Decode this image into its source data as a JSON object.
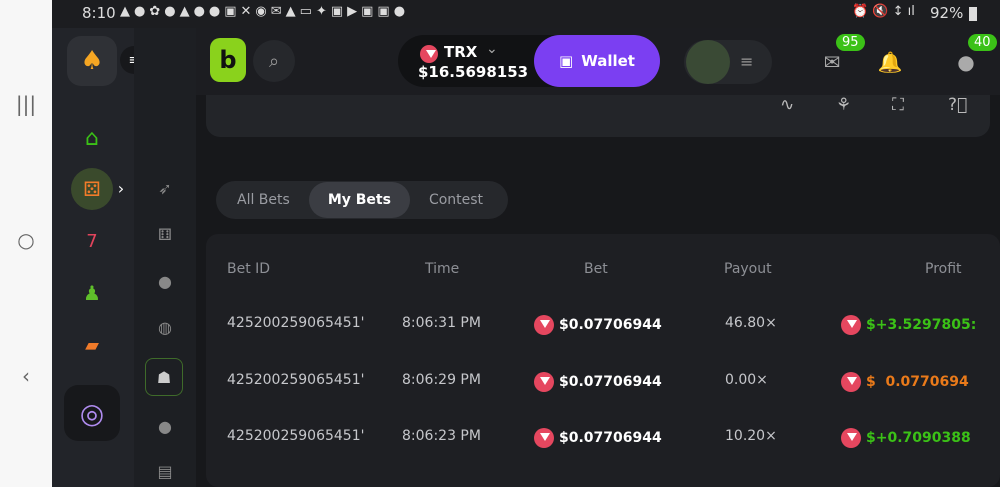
{
  "status_bar": {
    "time": "8:10",
    "battery": "92%"
  },
  "header": {
    "currency": "TRX",
    "balance": "$16.5698153",
    "wallet_label": "Wallet",
    "mail_badge": "95",
    "chat_badge": "40"
  },
  "tabs": [
    {
      "label": "All Bets",
      "active": false
    },
    {
      "label": "My Bets",
      "active": true
    },
    {
      "label": "Contest",
      "active": false
    }
  ],
  "table": {
    "columns": [
      "Bet ID",
      "Time",
      "Bet",
      "Payout",
      "Profit"
    ],
    "rows": [
      {
        "id": "425200259065451'",
        "time": "8:06:31 PM",
        "bet": "$0.07706944",
        "payout": "46.80×",
        "profit": "$+3.5297805:",
        "profit_color": "#3bc117"
      },
      {
        "id": "425200259065451'",
        "time": "8:06:29 PM",
        "bet": "$0.07706944",
        "payout": "0.00×",
        "profit": "$  0.0770694",
        "profit_color": "#ea7a1a"
      },
      {
        "id": "425200259065451'",
        "time": "8:06:23 PM",
        "bet": "$0.07706944",
        "payout": "10.20×",
        "profit": "$+0.7090388",
        "profit_color": "#3bc117"
      }
    ]
  },
  "colors": {
    "accent": "#7b3ff2",
    "brand_green": "#8ad21c",
    "win": "#3bc117",
    "loss": "#ea7a1a"
  }
}
